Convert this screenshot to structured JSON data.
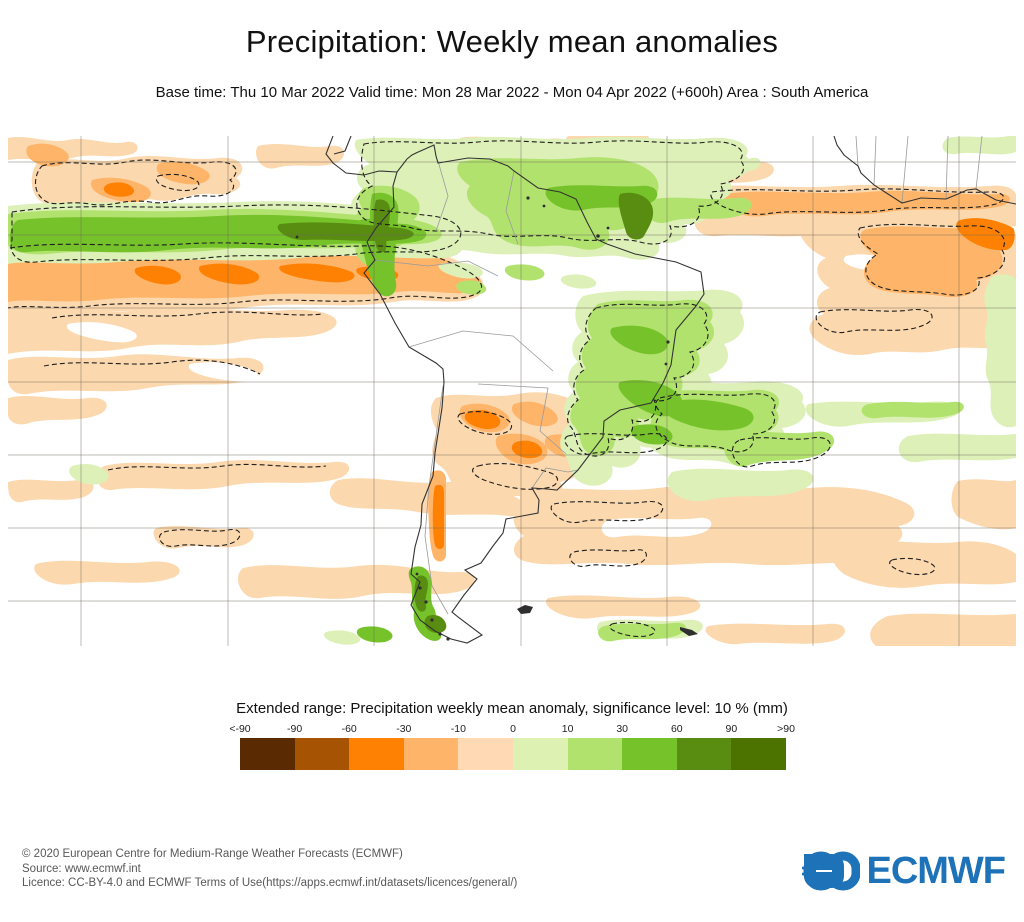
{
  "title": "Precipitation: Weekly mean anomalies",
  "subtitle": "Base time: Thu 10 Mar 2022 Valid time: Mon 28 Mar 2022 - Mon 04 Apr 2022 (+600h) Area : South America",
  "chart_data": {
    "type": "heatmap",
    "title": "Extended range: Precipitation weekly mean anomaly, significance level: 10 % (mm)",
    "area": "South America",
    "base_time": "Thu 10 Mar 2022",
    "valid_time": "Mon 28 Mar 2022 - Mon 04 Apr 2022",
    "lead": "+600h",
    "units": "mm",
    "significance_level_percent": 10,
    "legend": {
      "tick_labels": [
        "<-90",
        "-90",
        "-60",
        "-30",
        "-10",
        "0",
        "10",
        "30",
        "60",
        "90",
        ">90"
      ],
      "bin_colors": [
        "#5a2b03",
        "#a65403",
        "#ff8103",
        "#ffb569",
        "#fed9b3",
        "#dcf1b2",
        "#b2e26e",
        "#76c22a",
        "#588d11",
        "#4c7300"
      ]
    },
    "map": {
      "projection": "equirectangular",
      "lon_range": [
        -130,
        8
      ],
      "lat_range": [
        -55,
        15
      ],
      "graticule_deg": {
        "lon": 20,
        "lat": 10
      },
      "anomaly_features": [
        {
          "sign": "positive",
          "location": "equatorial East Pacific ITCZ band near 5N",
          "peak_mm": "60 to 90"
        },
        {
          "sign": "negative",
          "location": "East Pacific just south of the ITCZ band",
          "peak_mm": "-30 to -60"
        },
        {
          "sign": "positive",
          "location": "Colombia, Venezuela, Guianas and northern Brazil",
          "peak_mm": "30 to 90"
        },
        {
          "sign": "positive",
          "location": "eastern Brazil (Bahia) and subtropical South Atlantic",
          "peak_mm": "10 to 60"
        },
        {
          "sign": "negative",
          "location": "Paraguay, northern Argentina and central Chile Andes",
          "peak_mm": "-10 to -60"
        },
        {
          "sign": "negative",
          "location": "tropical North Atlantic off West Africa",
          "peak_mm": "-10 to -30"
        },
        {
          "sign": "negative",
          "location": "southern South Atlantic and South Pacific mid-latitudes",
          "peak_mm": "-10"
        },
        {
          "sign": "positive",
          "location": "southern Chile (Patagonia)",
          "peak_mm": "30 to 90"
        }
      ]
    }
  },
  "footer": {
    "line1": "© 2020 European Centre for Medium-Range Weather Forecasts (ECMWF)",
    "line2": "Source: www.ecmwf.int",
    "line3": "Licence: CC-BY-4.0 and ECMWF Terms of Use(https://apps.ecmwf.int/datasets/licences/general/)"
  },
  "logo": {
    "text": "ECMWF",
    "color": "#1d72b8"
  }
}
